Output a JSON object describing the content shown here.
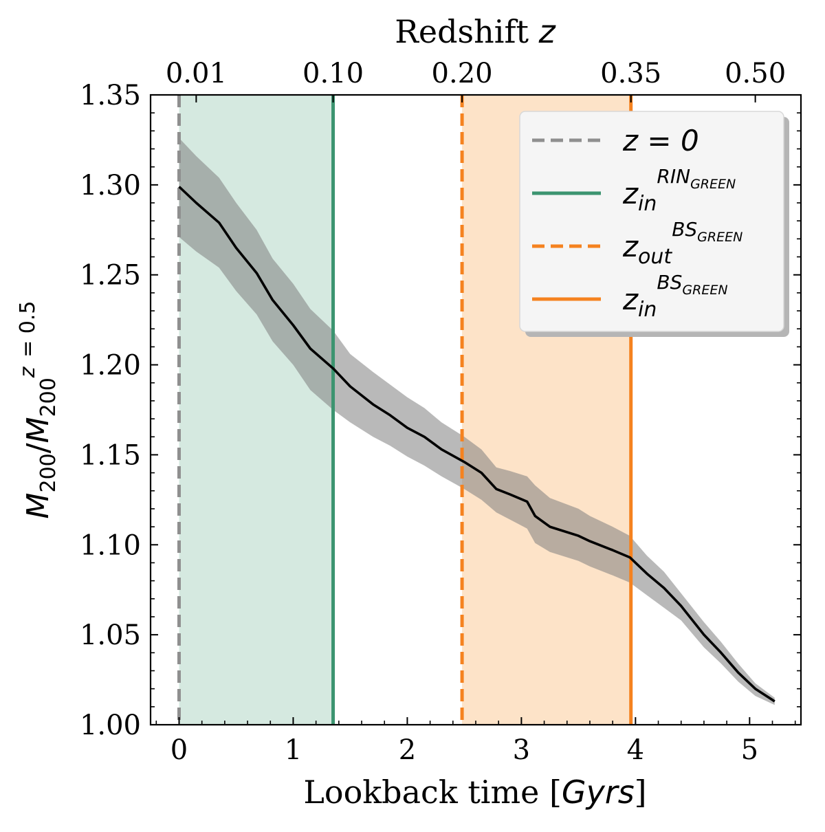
{
  "chart_data": {
    "type": "line",
    "xlabel": "Lookback time [Gyrs]",
    "xlabel_parts": {
      "prefix": "Lookback time [",
      "italic": "Gyrs",
      "suffix": "]"
    },
    "ylabel": "M200/M200^(z=0.5)",
    "top_axis_label": "Redshift z",
    "top_axis_label_parts": {
      "text": "Redshift ",
      "italic": "z"
    },
    "xlim": [
      -0.25,
      5.45
    ],
    "ylim": [
      1.0,
      1.35
    ],
    "x_ticks": [
      0,
      1,
      2,
      3,
      4,
      5
    ],
    "x_tick_labels": [
      "0",
      "1",
      "2",
      "3",
      "4",
      "5"
    ],
    "y_ticks": [
      1.0,
      1.05,
      1.1,
      1.15,
      1.2,
      1.25,
      1.3,
      1.35
    ],
    "y_tick_labels": [
      "1.00",
      "1.05",
      "1.10",
      "1.15",
      "1.20",
      "1.25",
      "1.30",
      "1.35"
    ],
    "top_ticks": [
      0.15,
      1.35,
      2.48,
      3.96,
      5.05
    ],
    "top_tick_labels": [
      "0.01",
      "0.10",
      "0.20",
      "0.35",
      "0.50"
    ],
    "grid": false,
    "legend_position": "top-right",
    "series": [
      {
        "role": "median",
        "color": "#000000",
        "x": [
          0,
          0.15,
          0.35,
          0.5,
          0.68,
          0.82,
          1.0,
          1.15,
          1.35,
          1.5,
          1.7,
          1.85,
          2.0,
          2.15,
          2.3,
          2.5,
          2.65,
          2.78,
          2.9,
          3.05,
          3.12,
          3.25,
          3.5,
          3.6,
          3.8,
          3.95,
          4.1,
          4.25,
          4.4,
          4.6,
          4.75,
          4.9,
          5.05,
          5.22
        ],
        "y": [
          1.299,
          1.29,
          1.279,
          1.265,
          1.251,
          1.236,
          1.222,
          1.209,
          1.198,
          1.188,
          1.178,
          1.172,
          1.165,
          1.16,
          1.153,
          1.146,
          1.14,
          1.131,
          1.128,
          1.124,
          1.116,
          1.11,
          1.105,
          1.102,
          1.097,
          1.093,
          1.084,
          1.076,
          1.066,
          1.05,
          1.04,
          1.029,
          1.02,
          1.013
        ]
      },
      {
        "role": "band-upper",
        "color": "#808080",
        "x": [
          0,
          0.15,
          0.35,
          0.5,
          0.68,
          0.82,
          1.0,
          1.15,
          1.35,
          1.5,
          1.7,
          1.85,
          2.0,
          2.15,
          2.3,
          2.5,
          2.65,
          2.78,
          2.9,
          3.05,
          3.12,
          3.25,
          3.5,
          3.6,
          3.8,
          3.95,
          4.1,
          4.25,
          4.4,
          4.6,
          4.75,
          4.9,
          5.05,
          5.22
        ],
        "y": [
          1.326,
          1.316,
          1.304,
          1.29,
          1.275,
          1.259,
          1.245,
          1.231,
          1.219,
          1.206,
          1.196,
          1.189,
          1.182,
          1.176,
          1.168,
          1.16,
          1.153,
          1.143,
          1.141,
          1.138,
          1.133,
          1.126,
          1.12,
          1.116,
          1.11,
          1.105,
          1.094,
          1.085,
          1.073,
          1.057,
          1.046,
          1.034,
          1.023,
          1.015
        ]
      },
      {
        "role": "band-lower",
        "color": "#808080",
        "x": [
          0,
          0.15,
          0.35,
          0.5,
          0.68,
          0.82,
          1.0,
          1.15,
          1.35,
          1.5,
          1.7,
          1.85,
          2.0,
          2.15,
          2.3,
          2.5,
          2.65,
          2.78,
          2.9,
          3.05,
          3.12,
          3.25,
          3.5,
          3.6,
          3.8,
          3.95,
          4.1,
          4.25,
          4.4,
          4.6,
          4.75,
          4.9,
          5.05,
          5.22
        ],
        "y": [
          1.271,
          1.263,
          1.254,
          1.241,
          1.228,
          1.213,
          1.2,
          1.186,
          1.175,
          1.168,
          1.16,
          1.155,
          1.149,
          1.144,
          1.138,
          1.131,
          1.125,
          1.118,
          1.114,
          1.109,
          1.101,
          1.096,
          1.091,
          1.088,
          1.083,
          1.079,
          1.072,
          1.065,
          1.058,
          1.043,
          1.034,
          1.024,
          1.016,
          1.011
        ]
      }
    ],
    "shaded_regions": [
      {
        "x_start": 0.0,
        "x_end": 1.35,
        "color": "#d5e9e0"
      },
      {
        "x_start": 2.48,
        "x_end": 3.96,
        "color": "#fde3c8"
      }
    ],
    "vertical_lines": [
      {
        "x": 0.0,
        "style": "dashed",
        "color": "#8f8f8f"
      },
      {
        "x": 1.35,
        "style": "solid",
        "color": "#3c9470"
      },
      {
        "x": 2.48,
        "style": "dashed",
        "color": "#f5821f"
      },
      {
        "x": 3.96,
        "style": "solid",
        "color": "#f5821f"
      }
    ],
    "legend": [
      {
        "label": "z = 0",
        "base": "z = 0",
        "sub": "",
        "sup": "",
        "sup_sub": "",
        "style": "dashed",
        "color": "#8f8f8f"
      },
      {
        "label": "z_in^RIN_GREEN",
        "base": "z",
        "sub": "in",
        "sup": "RIN",
        "sup_sub": "GREEN",
        "style": "solid",
        "color": "#3c9470"
      },
      {
        "label": "z_out^BS_GREEN",
        "base": "z",
        "sub": "out",
        "sup": "BS",
        "sup_sub": "GREEN",
        "style": "dashed",
        "color": "#f5821f"
      },
      {
        "label": "z_in^BS_GREEN",
        "base": "z",
        "sub": "in",
        "sup": "BS",
        "sup_sub": "GREEN",
        "style": "solid",
        "color": "#f5821f"
      }
    ]
  }
}
